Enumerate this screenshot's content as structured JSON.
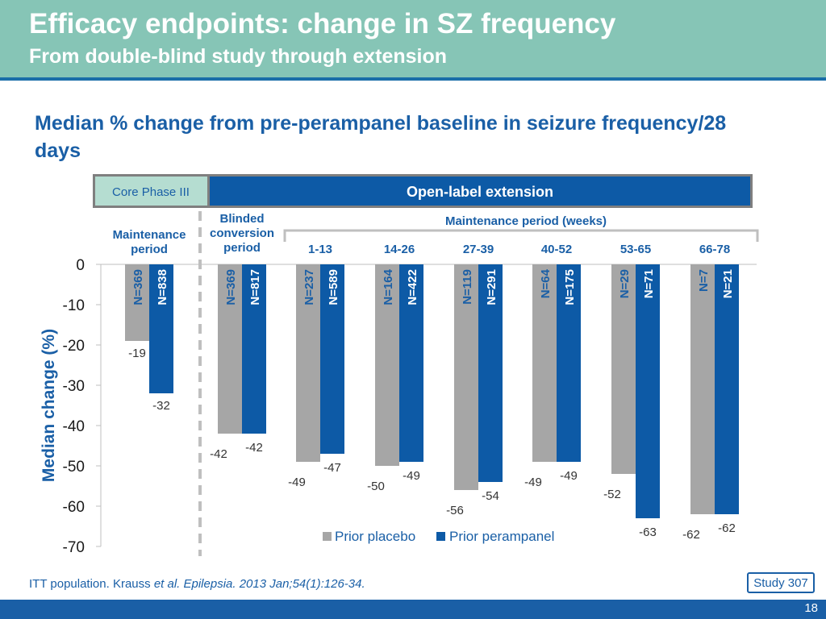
{
  "slide": {
    "title": "Efficacy endpoints: change in SZ frequency",
    "subtitle": "From double-blind study through extension",
    "footnote_plain": "ITT population. Krauss ",
    "footnote_italic": "et al. Epilepsia. 2013 Jan;54(1):126-34.",
    "study_badge": "Study 307",
    "page_number": "18"
  },
  "colors": {
    "header": "#86c5b6",
    "accent": "#1a5fa6",
    "placebo": "#a6a6a6",
    "perampanel": "#0d5aa6"
  },
  "chart_data": {
    "type": "bar",
    "title": "Median % change from pre-perampanel baseline in seizure frequency/28 days",
    "ylabel": "Median change (%)",
    "ylim": [
      -70,
      0
    ],
    "yticks": [
      0,
      -10,
      -20,
      -30,
      -40,
      -50,
      -60,
      -70
    ],
    "phase_boxes": {
      "core": "Core Phase III",
      "extension": "Open-label extension"
    },
    "bracket_label": "Maintenance period (weeks)",
    "categories": [
      "Maintenance period",
      "Blinded conversion period",
      "1-13",
      "14-26",
      "27-39",
      "40-52",
      "53-65",
      "66-78"
    ],
    "series": [
      {
        "name": "Prior placebo",
        "values": [
          -19,
          -42,
          -49,
          -50,
          -56,
          -49,
          -52,
          -62
        ],
        "n_labels": [
          "N=369",
          "N=369",
          "N=237",
          "N=164",
          "N=119",
          "N=64",
          "N=29",
          "N=7"
        ]
      },
      {
        "name": "Prior perampanel",
        "values": [
          -32,
          -42,
          -47,
          -49,
          -54,
          -49,
          -63,
          -62
        ],
        "n_labels": [
          "N=838",
          "N=817",
          "N=589",
          "N=422",
          "N=291",
          "N=175",
          "N=71",
          "N=21"
        ]
      }
    ],
    "legend_position": "bottom"
  }
}
